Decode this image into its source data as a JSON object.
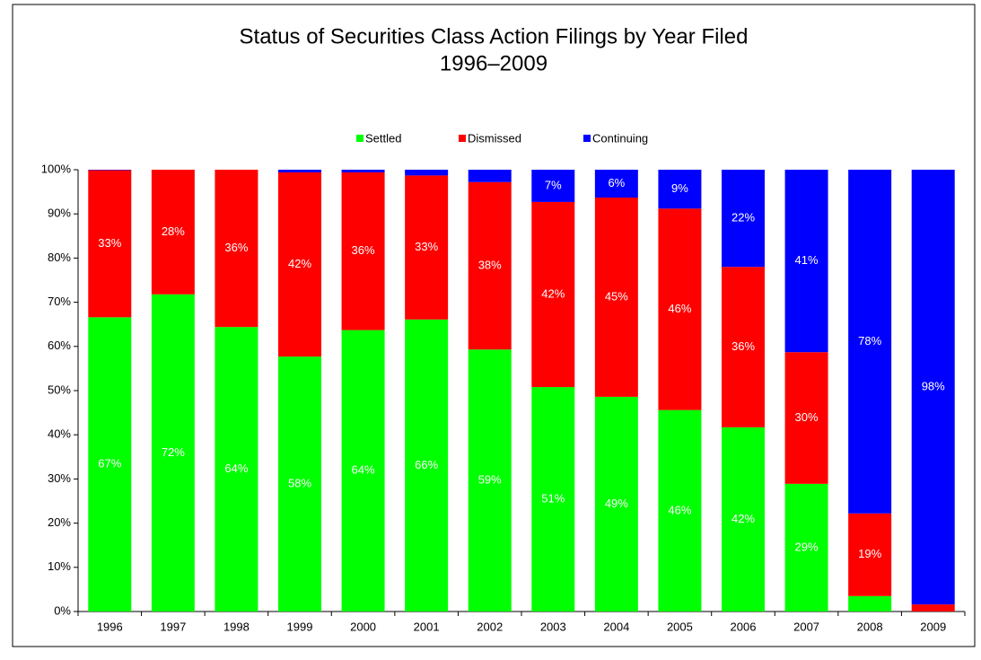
{
  "chart_data": {
    "type": "stacked_bar",
    "title": "Status of Securities Class Action Filings by Year Filed",
    "subtitle": "1996–2009",
    "categories": [
      "1996",
      "1997",
      "1998",
      "1999",
      "2000",
      "2001",
      "2002",
      "2003",
      "2004",
      "2005",
      "2006",
      "2007",
      "2008",
      "2009"
    ],
    "series": [
      {
        "name": "Settled",
        "color": "#00ff00",
        "values": [
          66.6,
          71.8,
          64.4,
          57.7,
          63.7,
          66.1,
          59.3,
          50.8,
          48.6,
          45.6,
          41.7,
          28.9,
          3.5,
          0
        ],
        "value_labels": [
          "67%",
          "72%",
          "64%",
          "58%",
          "64%",
          "66%",
          "59%",
          "51%",
          "49%",
          "46%",
          "42%",
          "29%",
          null,
          null
        ]
      },
      {
        "name": "Dismissed",
        "color": "#ff0000",
        "values": [
          33.3,
          28.2,
          35.6,
          41.7,
          35.7,
          32.6,
          37.9,
          41.9,
          45.1,
          45.6,
          36.3,
          29.8,
          18.7,
          1.6
        ],
        "value_labels": [
          "33%",
          "28%",
          "36%",
          "42%",
          "36%",
          "33%",
          "38%",
          "42%",
          "45%",
          "46%",
          "36%",
          "30%",
          "19%",
          null
        ]
      },
      {
        "name": "Continuing",
        "color": "#0000ff",
        "values": [
          0.1,
          0,
          0,
          0.6,
          0.6,
          1.3,
          2.8,
          7.3,
          6.3,
          8.8,
          22.0,
          41.3,
          77.8,
          98.4
        ],
        "value_labels": [
          null,
          null,
          null,
          null,
          null,
          null,
          null,
          "7%",
          "6%",
          "9%",
          "22%",
          "41%",
          "78%",
          "98%"
        ]
      }
    ],
    "ylim": [
      0,
      100
    ],
    "yticks": [
      {
        "value": 0,
        "label": "0%"
      },
      {
        "value": 10,
        "label": "10%"
      },
      {
        "value": 20,
        "label": "20%"
      },
      {
        "value": 30,
        "label": "30%"
      },
      {
        "value": 40,
        "label": "40%"
      },
      {
        "value": 50,
        "label": "50%"
      },
      {
        "value": 60,
        "label": "60%"
      },
      {
        "value": 70,
        "label": "70%"
      },
      {
        "value": 80,
        "label": "80%"
      },
      {
        "value": 90,
        "label": "90%"
      },
      {
        "value": 100,
        "label": "100%"
      }
    ],
    "legend": "top",
    "grid": false
  }
}
